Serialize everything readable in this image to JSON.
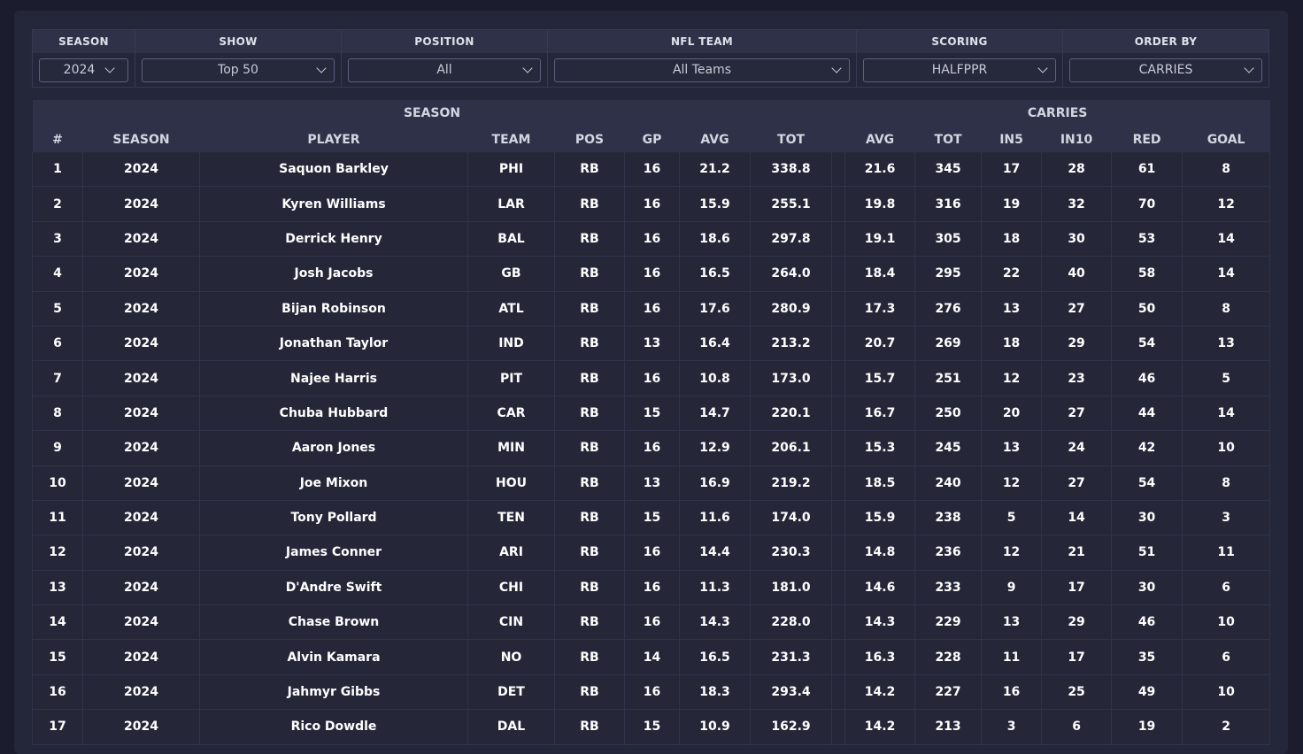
{
  "filters": {
    "season": {
      "label": "SEASON",
      "value": "2024"
    },
    "show": {
      "label": "SHOW",
      "value": "Top 50"
    },
    "position": {
      "label": "POSITION",
      "value": "All"
    },
    "nfl_team": {
      "label": "NFL TEAM",
      "value": "All Teams"
    },
    "scoring": {
      "label": "SCORING",
      "value": "HALFPPR"
    },
    "order_by": {
      "label": "ORDER BY",
      "value": "CARRIES"
    }
  },
  "table": {
    "group_headers": {
      "season": "SEASON",
      "carries": "CARRIES"
    },
    "columns": [
      "#",
      "SEASON",
      "PLAYER",
      "TEAM",
      "POS",
      "GP",
      "AVG",
      "TOT",
      "AVG",
      "TOT",
      "IN5",
      "IN10",
      "RED",
      "GOAL"
    ],
    "rows": [
      [
        "1",
        "2024",
        "Saquon Barkley",
        "PHI",
        "RB",
        "16",
        "21.2",
        "338.8",
        "21.6",
        "345",
        "17",
        "28",
        "61",
        "8"
      ],
      [
        "2",
        "2024",
        "Kyren Williams",
        "LAR",
        "RB",
        "16",
        "15.9",
        "255.1",
        "19.8",
        "316",
        "19",
        "32",
        "70",
        "12"
      ],
      [
        "3",
        "2024",
        "Derrick Henry",
        "BAL",
        "RB",
        "16",
        "18.6",
        "297.8",
        "19.1",
        "305",
        "18",
        "30",
        "53",
        "14"
      ],
      [
        "4",
        "2024",
        "Josh Jacobs",
        "GB",
        "RB",
        "16",
        "16.5",
        "264.0",
        "18.4",
        "295",
        "22",
        "40",
        "58",
        "14"
      ],
      [
        "5",
        "2024",
        "Bijan Robinson",
        "ATL",
        "RB",
        "16",
        "17.6",
        "280.9",
        "17.3",
        "276",
        "13",
        "27",
        "50",
        "8"
      ],
      [
        "6",
        "2024",
        "Jonathan Taylor",
        "IND",
        "RB",
        "13",
        "16.4",
        "213.2",
        "20.7",
        "269",
        "18",
        "29",
        "54",
        "13"
      ],
      [
        "7",
        "2024",
        "Najee Harris",
        "PIT",
        "RB",
        "16",
        "10.8",
        "173.0",
        "15.7",
        "251",
        "12",
        "23",
        "46",
        "5"
      ],
      [
        "8",
        "2024",
        "Chuba Hubbard",
        "CAR",
        "RB",
        "15",
        "14.7",
        "220.1",
        "16.7",
        "250",
        "20",
        "27",
        "44",
        "14"
      ],
      [
        "9",
        "2024",
        "Aaron Jones",
        "MIN",
        "RB",
        "16",
        "12.9",
        "206.1",
        "15.3",
        "245",
        "13",
        "24",
        "42",
        "10"
      ],
      [
        "10",
        "2024",
        "Joe Mixon",
        "HOU",
        "RB",
        "13",
        "16.9",
        "219.2",
        "18.5",
        "240",
        "12",
        "27",
        "54",
        "8"
      ],
      [
        "11",
        "2024",
        "Tony Pollard",
        "TEN",
        "RB",
        "15",
        "11.6",
        "174.0",
        "15.9",
        "238",
        "5",
        "14",
        "30",
        "3"
      ],
      [
        "12",
        "2024",
        "James Conner",
        "ARI",
        "RB",
        "16",
        "14.4",
        "230.3",
        "14.8",
        "236",
        "12",
        "21",
        "51",
        "11"
      ],
      [
        "13",
        "2024",
        "D'Andre Swift",
        "CHI",
        "RB",
        "16",
        "11.3",
        "181.0",
        "14.6",
        "233",
        "9",
        "17",
        "30",
        "6"
      ],
      [
        "14",
        "2024",
        "Chase Brown",
        "CIN",
        "RB",
        "16",
        "14.3",
        "228.0",
        "14.3",
        "229",
        "13",
        "29",
        "46",
        "10"
      ],
      [
        "15",
        "2024",
        "Alvin Kamara",
        "NO",
        "RB",
        "14",
        "16.5",
        "231.3",
        "16.3",
        "228",
        "11",
        "17",
        "35",
        "6"
      ],
      [
        "16",
        "2024",
        "Jahmyr Gibbs",
        "DET",
        "RB",
        "16",
        "18.3",
        "293.4",
        "14.2",
        "227",
        "16",
        "25",
        "49",
        "10"
      ],
      [
        "17",
        "2024",
        "Rico Dowdle",
        "DAL",
        "RB",
        "15",
        "10.9",
        "162.9",
        "14.2",
        "213",
        "3",
        "6",
        "19",
        "2"
      ]
    ]
  }
}
